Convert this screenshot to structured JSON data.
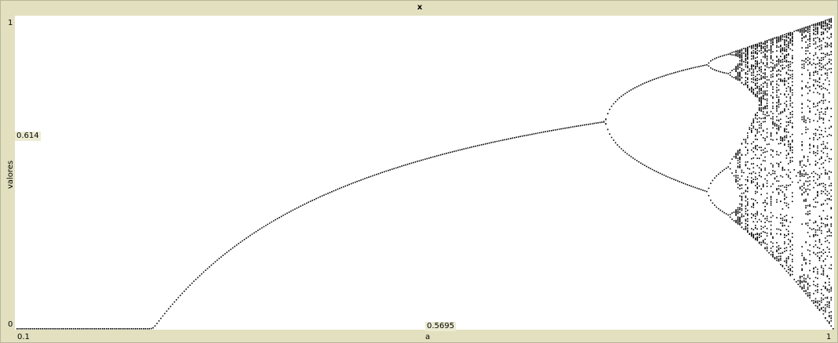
{
  "window": {
    "title": "x"
  },
  "chart_data": {
    "type": "scatter",
    "title": "x",
    "xlabel": "a",
    "ylabel": "valores",
    "xlim": [
      0.1,
      1
    ],
    "ylim": [
      0,
      1
    ],
    "x_tick_labels": [
      "0.1",
      "1"
    ],
    "y_tick_labels": [
      "0",
      "1"
    ],
    "cursor": {
      "x": "0.5695",
      "y": "0.614"
    },
    "series": [
      {
        "description_points": "logistic map attractor x(n+1)=4*a*x(n)*(1-x(n)), sampled over a",
        "a_samples": [
          0.1,
          0.2,
          0.3,
          0.35,
          0.4,
          0.45,
          0.5,
          0.55,
          0.6,
          0.65,
          0.7,
          0.75,
          0.8,
          0.85,
          0.875,
          0.9,
          0.95,
          1.0
        ],
        "x_values": [
          [
            0
          ],
          [
            0
          ],
          [
            0
          ],
          [
            0.286
          ],
          [
            0.375
          ],
          [
            0.444
          ],
          [
            0.5
          ],
          [
            0.545
          ],
          [
            0.583
          ],
          [
            0.615
          ],
          [
            0.643
          ],
          [
            0.667
          ],
          [
            0.513,
            0.799
          ],
          [
            0.34,
            0.488,
            0.844,
            0.851
          ],
          [
            0.383,
            0.501,
            0.827,
            0.875
          ],
          [
            0.38,
            0.9
          ],
          [
            0.2,
            0.95
          ],
          [
            0.0,
            1.0
          ]
        ]
      }
    ],
    "grid": false,
    "legend": "none"
  }
}
